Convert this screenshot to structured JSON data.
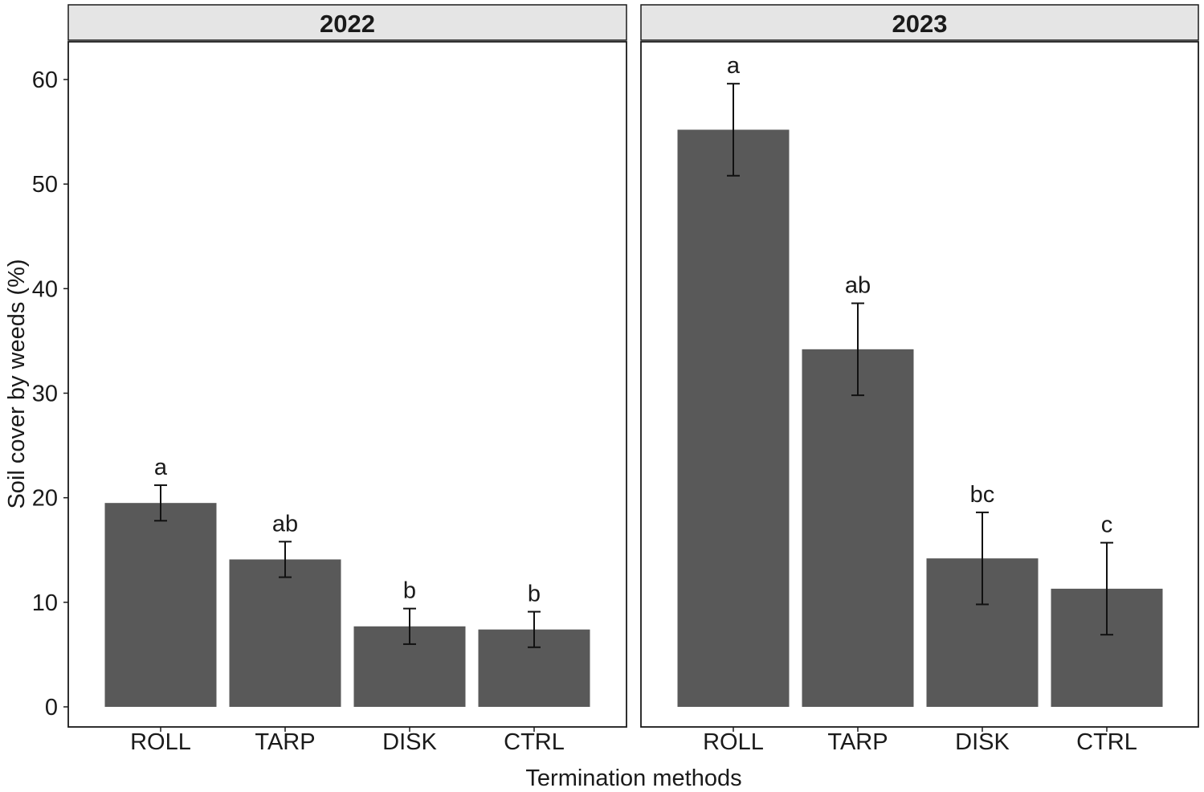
{
  "chart_data": {
    "type": "bar",
    "xlabel": "Termination methods",
    "ylabel": "Soil cover by weeds (%)",
    "ylim": [
      0,
      63.7
    ],
    "yticks": [
      0,
      10,
      20,
      30,
      40,
      50,
      60
    ],
    "categories": [
      "ROLL",
      "TARP",
      "DISK",
      "CTRL"
    ],
    "bar_color": "#595959",
    "strip_color": "#e5e5e5",
    "panels": [
      {
        "title": "2022",
        "values": [
          19.5,
          14.1,
          7.7,
          7.4
        ],
        "error_low": [
          17.8,
          12.4,
          6.0,
          5.7
        ],
        "error_high": [
          21.2,
          15.8,
          9.4,
          9.1
        ],
        "labels": [
          "a",
          "ab",
          "b",
          "b"
        ]
      },
      {
        "title": "2023",
        "values": [
          55.2,
          34.2,
          14.2,
          11.3
        ],
        "error_low": [
          50.8,
          29.8,
          9.8,
          6.9
        ],
        "error_high": [
          59.6,
          38.6,
          18.6,
          15.7
        ],
        "labels": [
          "a",
          "ab",
          "bc",
          "c"
        ]
      }
    ]
  }
}
